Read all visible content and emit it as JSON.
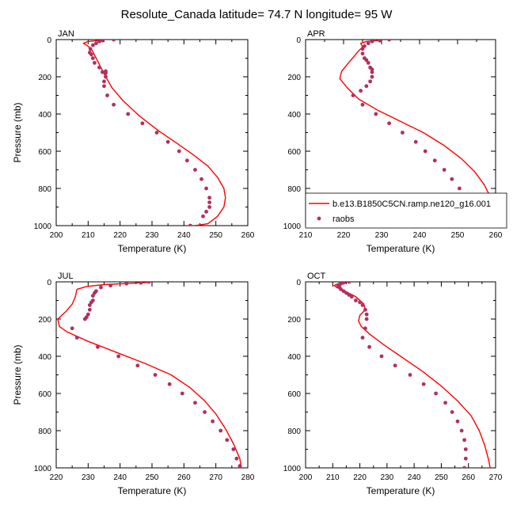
{
  "figure": {
    "title": "Resolute_Canada  latitude= 74.7 N longitude= 95 W"
  },
  "chart_data": [
    {
      "type": "line",
      "panel_label": "JAN",
      "xlabel": "Temperature (K)",
      "ylabel": "Pressure (mb)",
      "xlim": [
        200,
        260
      ],
      "ylim": [
        0,
        1000
      ],
      "y_inverted": true,
      "x_ticks": [
        200,
        210,
        220,
        230,
        240,
        250,
        260
      ],
      "y_ticks": [
        0,
        200,
        400,
        600,
        800,
        1000
      ],
      "grid": false,
      "series": [
        {
          "name": "b.e13.B1850C5CN.ramp.ne120_g16.001",
          "style": "line",
          "color": "#ff0000",
          "x": [
            213,
            210,
            208.5,
            209.5,
            211,
            212.5,
            214,
            215.5,
            217.5,
            221,
            226,
            232,
            238,
            243,
            247.5,
            250.5,
            252.5,
            253,
            252.5,
            250.5,
            247.5,
            243.5
          ],
          "y": [
            5,
            10,
            20,
            30,
            50,
            100,
            150,
            200,
            260,
            330,
            410,
            490,
            560,
            620,
            680,
            740,
            800,
            850,
            900,
            950,
            990,
            1000
          ]
        },
        {
          "name": "raobs",
          "style": "markers",
          "color": "#b03060",
          "x": [
            218,
            214.5,
            213.5,
            212.5,
            211.5,
            210.7,
            210.5,
            211,
            211.5,
            212,
            213.5,
            214.5,
            215.5,
            215.5,
            215.5,
            215,
            215,
            216,
            218,
            222.5,
            227,
            231.5,
            235,
            238.5,
            241,
            243.5,
            245.5,
            247,
            248,
            248,
            248,
            247,
            246,
            242
          ],
          "y": [
            0,
            5,
            10,
            20,
            30,
            50,
            70,
            80,
            100,
            125,
            150,
            175,
            170,
            180,
            200,
            225,
            250,
            300,
            350,
            400,
            450,
            500,
            550,
            600,
            650,
            700,
            750,
            800,
            850,
            875,
            900,
            925,
            950,
            1000
          ]
        }
      ]
    },
    {
      "type": "line",
      "panel_label": "APR",
      "xlabel": "Temperature (K)",
      "ylabel": "",
      "xlim": [
        210,
        260
      ],
      "ylim": [
        0,
        1000
      ],
      "y_inverted": true,
      "x_ticks": [
        210,
        220,
        230,
        240,
        250,
        260
      ],
      "y_ticks": [
        0,
        200,
        400,
        600,
        800,
        1000
      ],
      "grid": false,
      "legend": {
        "position": "right",
        "entries": [
          "b.e13.B1850C5CN.ramp.ne120_g16.001",
          "raobs"
        ]
      },
      "series": [
        {
          "name": "b.e13.B1850C5CN.ramp.ne120_g16.001",
          "style": "line",
          "color": "#ff0000",
          "x": [
            229,
            226,
            224.5,
            225,
            224,
            221.5,
            219.5,
            219,
            221,
            224,
            229,
            235,
            241,
            246.5,
            251,
            254.5,
            257,
            258.5,
            259,
            258,
            256,
            253
          ],
          "y": [
            5,
            10,
            20,
            40,
            60,
            120,
            170,
            210,
            260,
            320,
            380,
            440,
            500,
            570,
            640,
            710,
            780,
            840,
            900,
            950,
            990,
            1000
          ]
        },
        {
          "name": "raobs",
          "style": "markers",
          "color": "#b03060",
          "x": [
            232,
            229.5,
            227.5,
            226.5,
            225.5,
            225,
            225,
            225.5,
            226,
            226.5,
            227,
            227.5,
            227.5,
            227.5,
            227,
            226,
            224.5,
            222.5,
            225,
            228.5,
            232,
            235.5,
            239,
            241.5,
            244,
            246.5,
            248.5,
            250.5,
            252,
            253.5,
            254,
            253.5,
            251
          ],
          "y": [
            0,
            5,
            10,
            20,
            35,
            50,
            75,
            100,
            110,
            125,
            150,
            160,
            175,
            200,
            225,
            250,
            275,
            300,
            350,
            400,
            450,
            500,
            550,
            600,
            650,
            700,
            750,
            800,
            850,
            900,
            925,
            950,
            1000
          ]
        }
      ]
    },
    {
      "type": "line",
      "panel_label": "JUL",
      "xlabel": "Temperature (K)",
      "ylabel": "Pressure (mb)",
      "xlim": [
        220,
        280
      ],
      "ylim": [
        0,
        1000
      ],
      "y_inverted": true,
      "x_ticks": [
        220,
        230,
        240,
        250,
        260,
        270,
        280
      ],
      "y_ticks": [
        0,
        200,
        400,
        600,
        800,
        1000
      ],
      "grid": false,
      "series": [
        {
          "name": "b.e13.B1850C5CN.ramp.ne120_g16.001",
          "style": "line",
          "color": "#ff0000",
          "x": [
            249,
            243,
            235,
            229.5,
            226.5,
            226,
            225,
            223,
            220.5,
            221,
            223.5,
            230,
            239,
            248,
            256,
            262,
            266.5,
            270,
            273,
            275.5,
            277.5,
            278
          ],
          "y": [
            3,
            8,
            15,
            25,
            40,
            80,
            120,
            160,
            200,
            240,
            270,
            320,
            380,
            440,
            500,
            570,
            640,
            710,
            790,
            870,
            950,
            1000
          ]
        },
        {
          "name": "raobs",
          "style": "markers",
          "color": "#b03060",
          "x": [
            249,
            246.5,
            242,
            237,
            234,
            232.5,
            232,
            231.5,
            231.5,
            231,
            230.5,
            230.5,
            230,
            229.5,
            229,
            225,
            226.5,
            233,
            239.5,
            245.5,
            251,
            255.5,
            259.5,
            263.5,
            266.5,
            269,
            271.5,
            273.5,
            275.5,
            276.5,
            277.5,
            277.5
          ],
          "y": [
            0,
            5,
            10,
            20,
            30,
            50,
            60,
            75,
            100,
            110,
            125,
            150,
            175,
            190,
            200,
            250,
            300,
            350,
            400,
            450,
            500,
            550,
            600,
            650,
            700,
            750,
            800,
            850,
            900,
            950,
            990,
            1000
          ]
        }
      ]
    },
    {
      "type": "line",
      "panel_label": "OCT",
      "xlabel": "Temperature (K)",
      "ylabel": "",
      "xlim": [
        200,
        270
      ],
      "ylim": [
        0,
        1000
      ],
      "y_inverted": true,
      "x_ticks": [
        200,
        210,
        220,
        230,
        240,
        250,
        260,
        270
      ],
      "y_ticks": [
        0,
        200,
        400,
        600,
        800,
        1000
      ],
      "grid": false,
      "series": [
        {
          "name": "b.e13.B1850C5CN.ramp.ne120_g16.001",
          "style": "line",
          "color": "#ff0000",
          "x": [
            215,
            212,
            210.5,
            211.5,
            214.5,
            218.5,
            221.5,
            222,
            220,
            219.5,
            220.5,
            223.5,
            229,
            236,
            243,
            250,
            256,
            261,
            264,
            266,
            267.5,
            268
          ],
          "y": [
            5,
            10,
            20,
            30,
            50,
            80,
            120,
            150,
            180,
            210,
            240,
            280,
            340,
            410,
            480,
            560,
            640,
            720,
            800,
            880,
            960,
            1000
          ]
        },
        {
          "name": "raobs",
          "style": "markers",
          "color": "#b03060",
          "x": [
            216,
            214,
            213,
            212.5,
            212,
            212.5,
            213,
            214,
            215,
            216,
            217,
            218.5,
            220,
            221,
            222,
            222.5,
            222.5,
            222,
            221,
            223.5,
            228,
            233,
            238.5,
            243.5,
            248,
            251.5,
            254,
            256,
            257.5,
            258.5,
            259,
            259,
            258.5
          ],
          "y": [
            0,
            5,
            10,
            15,
            20,
            30,
            40,
            50,
            60,
            70,
            80,
            100,
            110,
            125,
            150,
            175,
            200,
            250,
            300,
            350,
            400,
            450,
            500,
            550,
            600,
            650,
            700,
            750,
            800,
            850,
            900,
            950,
            1000
          ]
        }
      ]
    }
  ]
}
